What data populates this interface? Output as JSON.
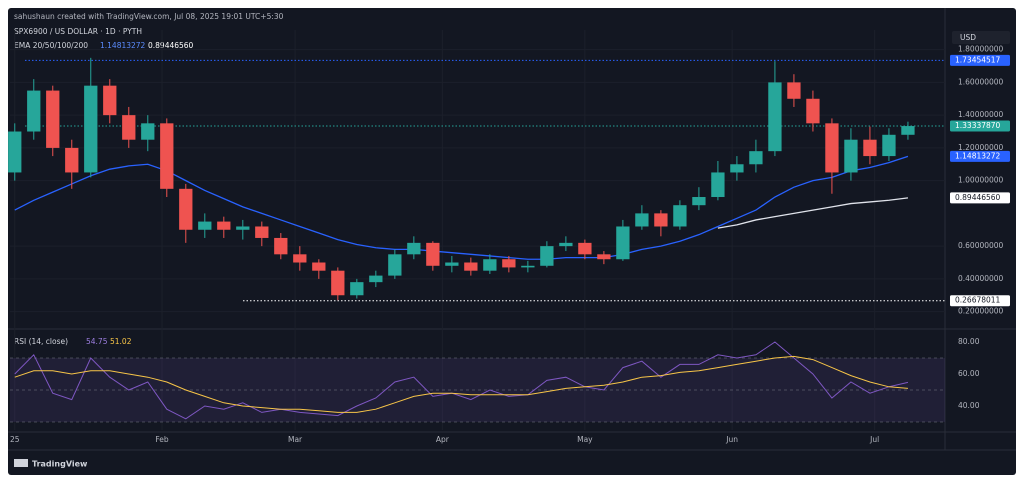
{
  "header": {
    "credit": "sahushaun created with TradingView.com, Jul 08, 2025 19:01 UTC+5:30",
    "logo": "TradingView"
  },
  "chart_data": {
    "type": "candlestick",
    "title": "SPX6900 / US DOLLAR · 1D · PYTH",
    "currency": "USD",
    "indicator_label": "EMA 20/50/100/200",
    "x": [
      0,
      4,
      8,
      12,
      16,
      20,
      24,
      28,
      32,
      36,
      40,
      44,
      48,
      52,
      56,
      60,
      64,
      68,
      72,
      76,
      80,
      84,
      88,
      92,
      96,
      100,
      104,
      108,
      112,
      116,
      120,
      124,
      128,
      132,
      136,
      140,
      144,
      148,
      152,
      156,
      160,
      164,
      168,
      172,
      176,
      180,
      184,
      188
    ],
    "open": [
      1.05,
      1.3,
      1.55,
      1.2,
      1.05,
      1.58,
      1.4,
      1.25,
      1.35,
      0.95,
      0.7,
      0.75,
      0.7,
      0.72,
      0.65,
      0.55,
      0.5,
      0.45,
      0.3,
      0.38,
      0.42,
      0.55,
      0.62,
      0.48,
      0.5,
      0.45,
      0.52,
      0.47,
      0.48,
      0.6,
      0.62,
      0.55,
      0.52,
      0.72,
      0.8,
      0.72,
      0.85,
      0.9,
      1.05,
      1.1,
      1.18,
      1.6,
      1.5,
      1.35,
      1.05,
      1.25,
      1.15,
      1.28
    ],
    "high": [
      1.35,
      1.62,
      1.58,
      1.25,
      1.75,
      1.62,
      1.45,
      1.4,
      1.38,
      0.98,
      0.8,
      0.78,
      0.76,
      0.75,
      0.68,
      0.6,
      0.52,
      0.47,
      0.4,
      0.45,
      0.58,
      0.66,
      0.63,
      0.54,
      0.53,
      0.55,
      0.54,
      0.51,
      0.63,
      0.66,
      0.64,
      0.57,
      0.76,
      0.85,
      0.82,
      0.88,
      0.96,
      1.12,
      1.15,
      1.25,
      1.73,
      1.65,
      1.55,
      1.38,
      1.32,
      1.33,
      1.32,
      1.36
    ],
    "low": [
      1.0,
      1.25,
      1.15,
      0.95,
      1.02,
      1.35,
      1.2,
      1.18,
      0.9,
      0.62,
      0.65,
      0.65,
      0.64,
      0.6,
      0.52,
      0.45,
      0.4,
      0.27,
      0.28,
      0.35,
      0.4,
      0.52,
      0.45,
      0.44,
      0.42,
      0.43,
      0.44,
      0.44,
      0.47,
      0.57,
      0.52,
      0.49,
      0.51,
      0.7,
      0.66,
      0.7,
      0.82,
      0.88,
      1.0,
      1.05,
      1.15,
      1.45,
      1.3,
      0.92,
      1.0,
      1.1,
      1.12,
      1.25
    ],
    "close": [
      1.3,
      1.55,
      1.2,
      1.05,
      1.58,
      1.4,
      1.25,
      1.35,
      0.95,
      0.7,
      0.75,
      0.7,
      0.72,
      0.65,
      0.55,
      0.5,
      0.45,
      0.3,
      0.38,
      0.42,
      0.55,
      0.62,
      0.48,
      0.5,
      0.45,
      0.52,
      0.47,
      0.48,
      0.6,
      0.62,
      0.55,
      0.52,
      0.72,
      0.8,
      0.72,
      0.85,
      0.9,
      1.05,
      1.1,
      1.18,
      1.6,
      1.5,
      1.35,
      1.05,
      1.25,
      1.15,
      1.28,
      1.3333787
    ],
    "up_color": "#26a69a",
    "down_color": "#ef5350",
    "series": [
      {
        "color": "#2962ff",
        "values": [
          0.82,
          0.88,
          0.93,
          0.98,
          1.03,
          1.07,
          1.09,
          1.1,
          1.06,
          1.0,
          0.94,
          0.89,
          0.84,
          0.8,
          0.76,
          0.72,
          0.68,
          0.64,
          0.61,
          0.59,
          0.58,
          0.58,
          0.57,
          0.56,
          0.55,
          0.54,
          0.53,
          0.52,
          0.52,
          0.53,
          0.53,
          0.53,
          0.55,
          0.58,
          0.6,
          0.63,
          0.67,
          0.72,
          0.77,
          0.82,
          0.9,
          0.96,
          1.0,
          1.02,
          1.06,
          1.08,
          1.11,
          1.14813272
        ]
      },
      {
        "color": "#e0e3eb",
        "values": [
          null,
          null,
          null,
          null,
          null,
          null,
          null,
          null,
          null,
          null,
          null,
          null,
          null,
          null,
          null,
          null,
          null,
          null,
          null,
          null,
          null,
          null,
          null,
          null,
          null,
          null,
          null,
          null,
          null,
          null,
          null,
          null,
          null,
          null,
          null,
          null,
          null,
          0.71,
          0.73,
          0.76,
          0.78,
          0.8,
          0.82,
          0.84,
          0.86,
          0.87,
          0.88,
          0.8944656
        ]
      }
    ],
    "price_labels": [
      {
        "value": 1.73454517,
        "label": "1.73454517",
        "color": "#2962ff",
        "text_color": "#ffffff",
        "line": "full"
      },
      {
        "value": 1.3333787,
        "label": "1.33337870",
        "color": "#26a69a",
        "text_color": "#ffffff",
        "line": "full"
      },
      {
        "value": 1.14813272,
        "label": "1.14813272",
        "color": "#2962ff",
        "text_color": "#ffffff"
      },
      {
        "value": 0.8944656,
        "label": "0.89446560",
        "color": "#ffffff",
        "text_color": "#131722"
      },
      {
        "value": 0.26678011,
        "label": "0.26678011",
        "color": "#ffffff",
        "text_color": "#131722",
        "line": "partial"
      }
    ],
    "xlim": [
      -1,
      195.8
    ],
    "xticks": [
      {
        "value": 0,
        "label": "25"
      },
      {
        "value": 31,
        "label": "Feb"
      },
      {
        "value": 59,
        "label": "Mar"
      },
      {
        "value": 90,
        "label": "Apr"
      },
      {
        "value": 120,
        "label": "May"
      },
      {
        "value": 151,
        "label": "Jun"
      },
      {
        "value": 181,
        "label": "Jul"
      }
    ],
    "ylim": [
      0.1,
      1.92
    ],
    "yticks": [
      {
        "value": 0.2,
        "label": "0.20000000"
      },
      {
        "value": 0.4,
        "label": "0.40000000"
      },
      {
        "value": 0.6,
        "label": "0.60000000"
      },
      {
        "value": 1.0,
        "label": "1.00000000"
      },
      {
        "value": 1.2,
        "label": "1.20000000"
      },
      {
        "value": 1.4,
        "label": "1.40000000"
      },
      {
        "value": 1.6,
        "label": "1.60000000"
      },
      {
        "value": 1.8,
        "label": "1.80000000"
      }
    ],
    "rsi": {
      "label": "RSI (14, close)",
      "series": [
        {
          "color": "#7e57c2",
          "values": [
            60,
            72,
            48,
            44,
            70,
            58,
            50,
            55,
            38,
            32,
            40,
            38,
            42,
            36,
            38,
            36,
            35,
            34,
            40,
            45,
            55,
            58,
            46,
            48,
            44,
            50,
            46,
            47,
            56,
            58,
            52,
            50,
            64,
            68,
            58,
            66,
            66,
            72,
            70,
            72,
            80,
            70,
            60,
            45,
            55,
            48,
            52,
            54.75
          ]
        },
        {
          "color": "#f7c548",
          "values": [
            58,
            62,
            62,
            60,
            62,
            62,
            60,
            58,
            55,
            50,
            46,
            42,
            40,
            39,
            38,
            38,
            37,
            36,
            36,
            38,
            42,
            46,
            48,
            48,
            47,
            47,
            47,
            47,
            49,
            51,
            52,
            53,
            55,
            58,
            59,
            61,
            62,
            64,
            66,
            68,
            70,
            71,
            69,
            64,
            59,
            55,
            52,
            51.02
          ]
        }
      ],
      "ylim": [
        25,
        86.25
      ],
      "yticks": [
        {
          "value": 40,
          "label": "40.00"
        },
        {
          "value": 60,
          "label": "60.00"
        },
        {
          "value": 80,
          "label": "80.00"
        }
      ],
      "band": [
        30,
        70
      ],
      "midline": 50
    }
  }
}
